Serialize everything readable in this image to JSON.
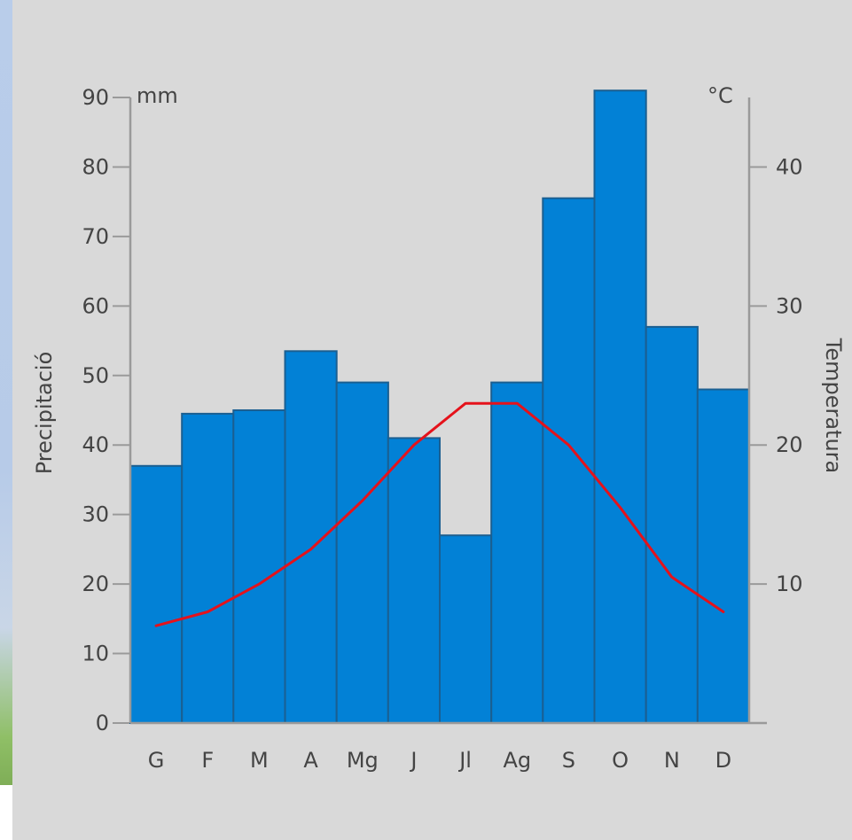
{
  "chart_data": {
    "type": "bar",
    "title": "",
    "categories": [
      "G",
      "F",
      "M",
      "A",
      "Mg",
      "J",
      "Jl",
      "Ag",
      "S",
      "O",
      "N",
      "D"
    ],
    "series": [
      {
        "name": "",
        "type": "bar",
        "axis": "left",
        "values": [
          37,
          44.5,
          45,
          53.5,
          49,
          41,
          27,
          49,
          75.5,
          91,
          57,
          48
        ]
      },
      {
        "name": "",
        "type": "line",
        "axis": "right",
        "values": [
          7,
          8,
          10,
          12.5,
          16,
          20,
          23,
          23,
          20,
          15.5,
          10.5,
          8
        ]
      }
    ],
    "ylabel": "Precipitació",
    "ylabel_right": "Temperatura",
    "y_unit": "mm",
    "y_right_unit": "°C",
    "ylim": [
      0,
      90
    ],
    "ylim_right": [
      0,
      45
    ],
    "yticks": [
      "0",
      "10",
      "20",
      "30",
      "40",
      "50",
      "60",
      "70",
      "80",
      "90"
    ],
    "yticks_right": [
      "10",
      "20",
      "30",
      "40"
    ],
    "grid": false,
    "colors": {
      "bars": "#0281d6",
      "bar_border": "#1b5f91",
      "line": "#e5121b",
      "axis": "#9a9a9a",
      "background": "#d9d9d9"
    }
  }
}
